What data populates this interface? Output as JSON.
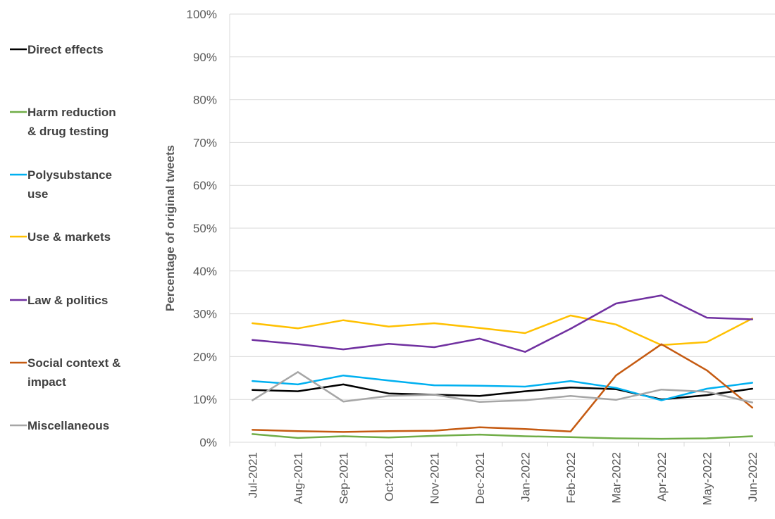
{
  "chart_data": {
    "type": "line",
    "ylabel": "Percentage of original tweets",
    "ylim": [
      0,
      100
    ],
    "y_ticks": [
      "0%",
      "10%",
      "20%",
      "30%",
      "40%",
      "50%",
      "60%",
      "70%",
      "80%",
      "90%",
      "100%"
    ],
    "grid": "horizontal",
    "legend_position": "left",
    "categories": [
      "Jul-2021",
      "Aug-2021",
      "Sep-2021",
      "Oct-2021",
      "Nov-2021",
      "Dec-2021",
      "Jan-2022",
      "Feb-2022",
      "Mar-2022",
      "Apr-2022",
      "May-2022",
      "Jun-2022"
    ],
    "series": [
      {
        "name": "Direct effects",
        "legend_lines": [
          "Direct effects"
        ],
        "color": "#000000",
        "values": [
          12.2,
          11.9,
          13.5,
          11.4,
          11.1,
          10.8,
          11.9,
          12.8,
          12.4,
          10.0,
          11.0,
          12.5
        ]
      },
      {
        "name": "Harm reduction & drug testing",
        "legend_lines": [
          "Harm reduction",
          "& drug testing"
        ],
        "color": "#70AD47",
        "values": [
          1.9,
          1.0,
          1.4,
          1.1,
          1.5,
          1.8,
          1.4,
          1.2,
          0.9,
          0.8,
          0.9,
          1.4
        ]
      },
      {
        "name": "Polysubstance use",
        "legend_lines": [
          "Polysubstance",
          "use"
        ],
        "color": "#00B0F0",
        "values": [
          14.3,
          13.5,
          15.6,
          14.4,
          13.3,
          13.2,
          13.0,
          14.3,
          12.7,
          9.8,
          12.5,
          13.9
        ]
      },
      {
        "name": "Use & markets",
        "legend_lines": [
          "Use & markets"
        ],
        "color": "#FFC000",
        "values": [
          27.8,
          26.6,
          28.5,
          27.0,
          27.8,
          26.7,
          25.5,
          29.6,
          27.5,
          22.7,
          23.4,
          28.9
        ]
      },
      {
        "name": "Law & politics",
        "legend_lines": [
          "Law & politics"
        ],
        "color": "#7030A0",
        "values": [
          23.9,
          22.9,
          21.7,
          23.0,
          22.2,
          24.2,
          21.1,
          26.5,
          32.4,
          34.3,
          29.1,
          28.7
        ]
      },
      {
        "name": "Social context & impact",
        "legend_lines": [
          "Social context &",
          "impact"
        ],
        "color": "#C55A11",
        "values": [
          2.9,
          2.6,
          2.4,
          2.6,
          2.7,
          3.5,
          3.1,
          2.5,
          15.6,
          22.9,
          16.8,
          8.1
        ]
      },
      {
        "name": "Miscellaneous",
        "legend_lines": [
          "Miscellaneous"
        ],
        "color": "#A6A6A6",
        "values": [
          9.8,
          16.4,
          9.5,
          10.8,
          11.1,
          9.4,
          9.8,
          10.8,
          9.9,
          12.3,
          11.8,
          9.3
        ]
      }
    ]
  }
}
